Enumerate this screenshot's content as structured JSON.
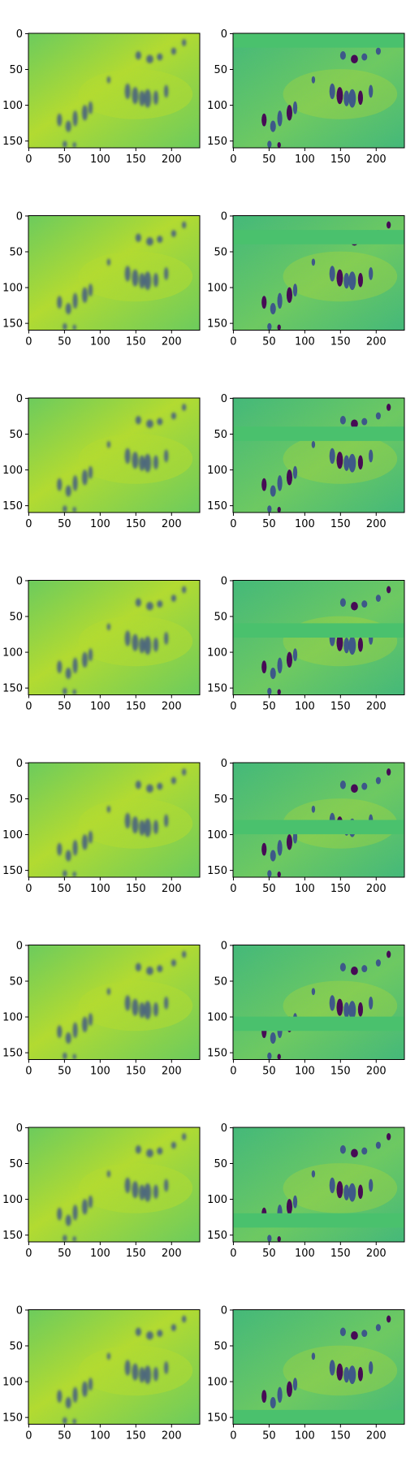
{
  "figure": {
    "rows": 8,
    "cols": 2,
    "x_ticks": [
      0,
      50,
      100,
      150,
      200
    ],
    "y_ticks": [
      0,
      50,
      100,
      150
    ],
    "image_width": 240,
    "image_height": 160,
    "colormap": "viridis",
    "colors": {
      "background": "#ffffff",
      "axes": "#000000",
      "field_light": "#6cce59",
      "field_green": "#3fbc73",
      "field_yellow": "#b5de2b",
      "figure_dark": "#3b528b",
      "figure_darkest": "#440154",
      "band_flat": "#4ac16d"
    },
    "panels": [
      {
        "row": 1,
        "col": 1,
        "kind": "reconstruction",
        "band_top": null
      },
      {
        "row": 1,
        "col": 2,
        "kind": "masked-input",
        "band_top": 0
      },
      {
        "row": 2,
        "col": 1,
        "kind": "reconstruction",
        "band_top": null
      },
      {
        "row": 2,
        "col": 2,
        "kind": "masked-input",
        "band_top": 20
      },
      {
        "row": 3,
        "col": 1,
        "kind": "reconstruction",
        "band_top": null
      },
      {
        "row": 3,
        "col": 2,
        "kind": "masked-input",
        "band_top": 40
      },
      {
        "row": 4,
        "col": 1,
        "kind": "reconstruction",
        "band_top": null
      },
      {
        "row": 4,
        "col": 2,
        "kind": "masked-input",
        "band_top": 60
      },
      {
        "row": 5,
        "col": 1,
        "kind": "reconstruction",
        "band_top": null
      },
      {
        "row": 5,
        "col": 2,
        "kind": "masked-input",
        "band_top": 80
      },
      {
        "row": 6,
        "col": 1,
        "kind": "reconstruction",
        "band_top": null
      },
      {
        "row": 6,
        "col": 2,
        "kind": "masked-input",
        "band_top": 100
      },
      {
        "row": 7,
        "col": 1,
        "kind": "reconstruction",
        "band_top": null
      },
      {
        "row": 7,
        "col": 2,
        "kind": "masked-input",
        "band_top": 120
      },
      {
        "row": 8,
        "col": 1,
        "kind": "reconstruction",
        "band_top": null
      },
      {
        "row": 8,
        "col": 2,
        "kind": "masked-input",
        "band_top": 140
      }
    ]
  }
}
